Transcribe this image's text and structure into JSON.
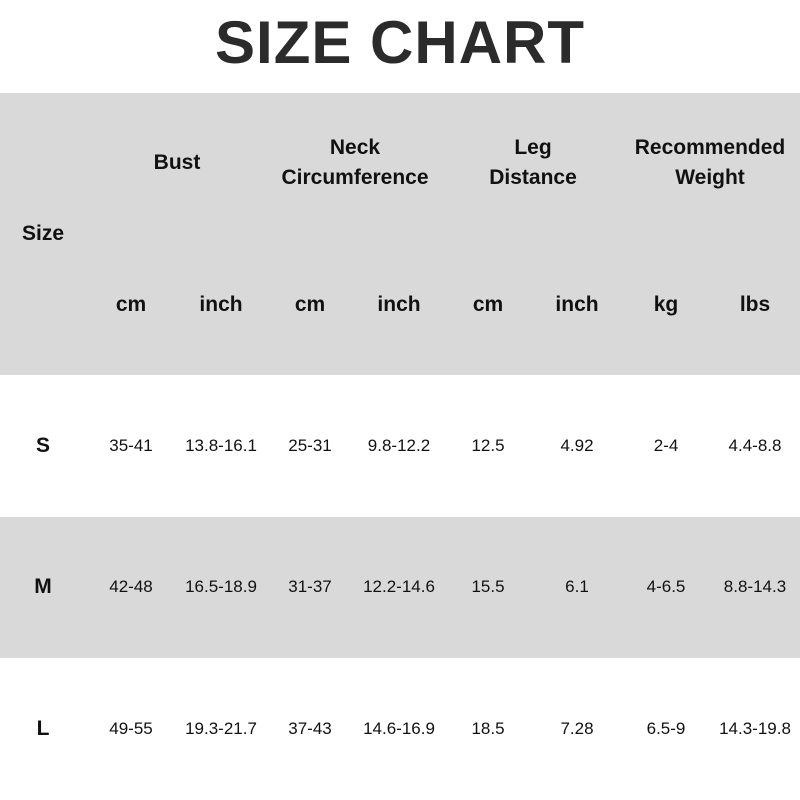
{
  "title": "SIZE CHART",
  "colors": {
    "header_bg": "#d9d9d9",
    "stripe_bg": "#d9d9d9",
    "title": "#2b2b2b"
  },
  "header": {
    "size": "Size",
    "groups": [
      {
        "label": "Bust",
        "units": [
          "cm",
          "inch"
        ]
      },
      {
        "label": "Neck Circumference",
        "line1": "Neck",
        "line2": "Circumference",
        "units": [
          "cm",
          "inch"
        ]
      },
      {
        "label": "Leg Distance",
        "line1": "Leg",
        "line2": "Distance",
        "units": [
          "cm",
          "inch"
        ]
      },
      {
        "label": "Recommended Weight",
        "line1": "Recommended",
        "line2": "Weight",
        "units": [
          "kg",
          "lbs"
        ]
      }
    ]
  },
  "rows": [
    {
      "size": "S",
      "values": [
        "35-41",
        "13.8-16.1",
        "25-31",
        "9.8-12.2",
        "12.5",
        "4.92",
        "2-4",
        "4.4-8.8"
      ]
    },
    {
      "size": "M",
      "values": [
        "42-48",
        "16.5-18.9",
        "31-37",
        "12.2-14.6",
        "15.5",
        "6.1",
        "4-6.5",
        "8.8-14.3"
      ]
    },
    {
      "size": "L",
      "values": [
        "49-55",
        "19.3-21.7",
        "37-43",
        "14.6-16.9",
        "18.5",
        "7.28",
        "6.5-9",
        "14.3-19.8"
      ]
    }
  ]
}
